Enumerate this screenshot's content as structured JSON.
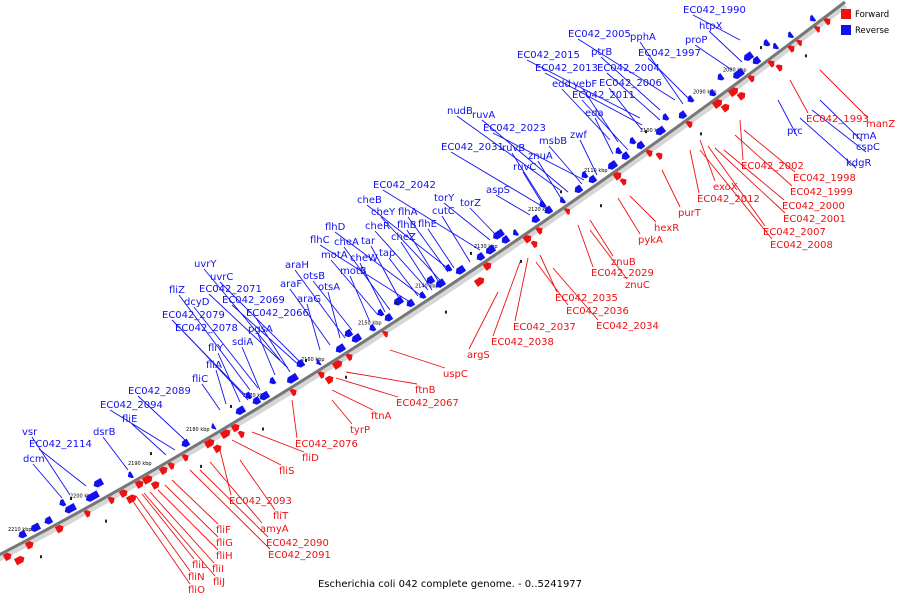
{
  "caption": "Escherichia coli 042 complete genome. - 0..5241977",
  "legend": {
    "placement": "top-right",
    "items": [
      {
        "label": "Forward",
        "color": "#ee1111"
      },
      {
        "label": "Reverse",
        "color": "#1111ee"
      }
    ]
  },
  "colors": {
    "forward": "#ee1111",
    "reverse": "#1111ee",
    "backbone": "#7a7a7a"
  },
  "ticks": [
    "2080 kbp",
    "2090 kbp",
    "2100 kbp",
    "2110 kbp",
    "2120 kbp",
    "2130 kbp",
    "2140 kbp",
    "2150 kbp",
    "2160 kbp",
    "2170 kbp",
    "2180 kbp",
    "2190 kbp",
    "2200 kbp",
    "2210 kbp"
  ],
  "reverse_labels": [
    "EC042_1990",
    "htpX",
    "proP",
    "EC042_2005",
    "pphA",
    "EC042_1997",
    "ptrB",
    "EC042_2015",
    "EC042_2013",
    "EC042_2004",
    "edd",
    "yebF",
    "EC042_2006",
    "EC042_2011",
    "eda",
    "nudB",
    "ruvA",
    "EC042_2023",
    "msbB",
    "zwf",
    "EC042_2031",
    "ruvB",
    "znuA",
    "ruvC",
    "EC042_2042",
    "aspS",
    "torY",
    "cheB",
    "torZ",
    "cutC",
    "cheY",
    "flhA",
    "cheR",
    "flhB",
    "flhE",
    "flhD",
    "tar",
    "cheZ",
    "flhC",
    "cheA",
    "motA",
    "tap",
    "cheW",
    "araH",
    "motB",
    "uvrY",
    "otsB",
    "araF",
    "uvrC",
    "otsA",
    "EC042_2071",
    "araG",
    "fliZ",
    "dcyD",
    "EC042_2069",
    "EC042_2079",
    "EC042_2066",
    "pgsA",
    "EC042_2078",
    "sdiA",
    "fliY",
    "fliA",
    "fliC",
    "EC042_2089",
    "EC042_2094",
    "fliE",
    "vsr",
    "dsrB",
    "EC042_2114",
    "dcm",
    "prc",
    "rrmA",
    "cspC",
    "kdgR"
  ],
  "forward_labels": [
    "manZ",
    "EC042_1993",
    "EC042_2002",
    "EC042_1998",
    "EC042_1999",
    "exoX",
    "EC042_2000",
    "EC042_2012",
    "EC042_2001",
    "EC042_2007",
    "EC042_2008",
    "purT",
    "hexR",
    "pykA",
    "znuB",
    "EC042_2029",
    "znuC",
    "EC042_2035",
    "EC042_2036",
    "EC042_2034",
    "EC042_2037",
    "EC042_2038",
    "argS",
    "uspC",
    "ftnB",
    "EC042_2067",
    "ftnA",
    "tyrP",
    "EC042_2076",
    "fliD",
    "fliS",
    "EC042_2093",
    "fliT",
    "amyA",
    "EC042_2090",
    "EC042_2091",
    "fliF",
    "fliG",
    "fliH",
    "fliI",
    "fliJ",
    "fliL",
    "fliN",
    "fliO"
  ]
}
